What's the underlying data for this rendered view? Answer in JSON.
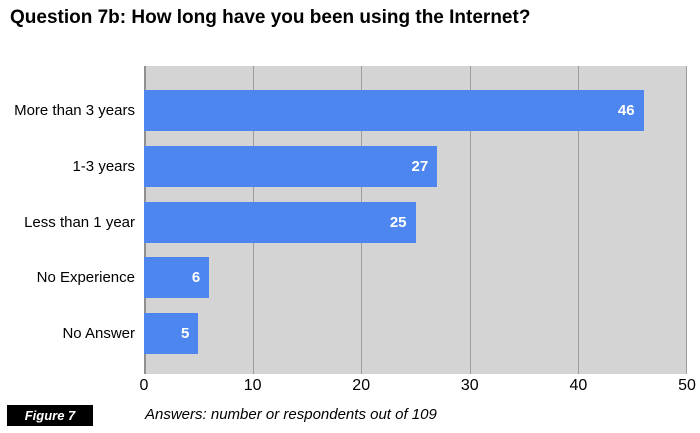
{
  "chart_data": {
    "type": "bar",
    "orientation": "horizontal",
    "title": "Question 7b: How long have you been using the Internet?",
    "categories": [
      "More than 3 years",
      "1-3 years",
      "Less than 1 year",
      "No Experience",
      "No Answer"
    ],
    "values": [
      46,
      27,
      25,
      6,
      5
    ],
    "xlim": [
      0,
      50
    ],
    "xticks": [
      0,
      10,
      20,
      30,
      40,
      50
    ],
    "grid": "vertical-gridlines-on",
    "legend": "none",
    "caption": "Answers: number or respondents out of 109",
    "figure_label": "Figure 7",
    "colors": {
      "bar": "#4d86ee",
      "plot_background": "#d4d4d4",
      "gridline": "#9c9c9c",
      "value_label": "#ffffff",
      "text": "#000000",
      "figure_box_background": "#000000",
      "figure_box_text": "#ffffff"
    }
  }
}
